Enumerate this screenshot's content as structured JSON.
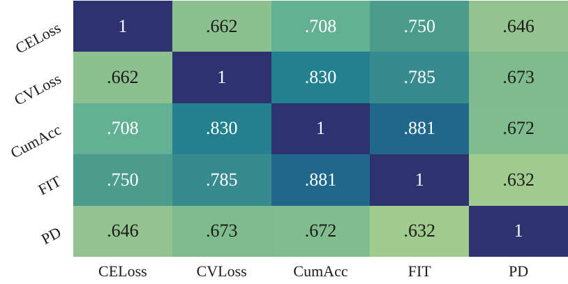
{
  "figure": {
    "background": "#ffffff",
    "label_color": "#1b1b1b"
  },
  "chart_data": {
    "type": "heatmap",
    "title": "",
    "description": "Correlation matrix heatmap of five metrics",
    "variables": [
      "CELoss",
      "CVLoss",
      "CumAcc",
      "FIT",
      "PD"
    ],
    "x_tick_labels": [
      "CELoss",
      "CVLoss",
      "CumAcc",
      "FIT",
      "PD"
    ],
    "y_tick_labels": [
      "CELoss",
      "CVLoss",
      "CumAcc",
      "FIT",
      "PD"
    ],
    "matrix": [
      [
        1.0,
        0.662,
        0.708,
        0.75,
        0.646
      ],
      [
        0.662,
        1.0,
        0.83,
        0.785,
        0.673
      ],
      [
        0.708,
        0.83,
        1.0,
        0.881,
        0.672
      ],
      [
        0.75,
        0.785,
        0.881,
        1.0,
        0.632
      ],
      [
        0.646,
        0.673,
        0.672,
        0.632,
        1.0
      ]
    ],
    "cell_labels": [
      [
        "1",
        ".662",
        ".708",
        ".750",
        ".646"
      ],
      [
        ".662",
        "1",
        ".830",
        ".785",
        ".673"
      ],
      [
        ".708",
        ".830",
        "1",
        ".881",
        ".672"
      ],
      [
        ".750",
        ".785",
        ".881",
        "1",
        ".632"
      ],
      [
        ".646",
        ".673",
        ".672",
        ".632",
        "1"
      ]
    ],
    "cell_colors": [
      [
        "#2e326f",
        "#8cc08f",
        "#63b094",
        "#4b9c8d",
        "#93c490"
      ],
      [
        "#8cc08f",
        "#2e326f",
        "#23808f",
        "#378b8e",
        "#7fbc8d"
      ],
      [
        "#63b094",
        "#23808f",
        "#2e326f",
        "#1f688c",
        "#80bc8d"
      ],
      [
        "#4b9c8d",
        "#378b8e",
        "#1f688c",
        "#2e326f",
        "#a2cb8f"
      ],
      [
        "#93c490",
        "#7fbc8d",
        "#80bc8d",
        "#a2cb8f",
        "#2e326f"
      ]
    ],
    "value_text_threshold": 0.7,
    "text_on_dark": "#ffffff",
    "text_on_light": "#1b1b1b",
    "colormap": "green-teal-navy (YlGnBu-like)",
    "legend": "none",
    "gridlines": false,
    "value_range": [
      0.632,
      1.0
    ]
  }
}
